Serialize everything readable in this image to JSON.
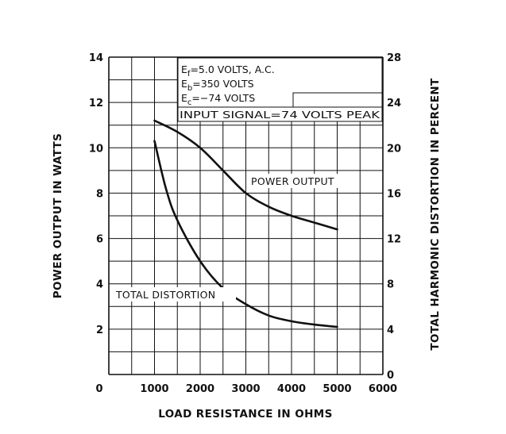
{
  "chart_data": {
    "type": "line",
    "xlabel": "LOAD RESISTANCE IN OHMS",
    "ylabel": "POWER OUTPUT IN WATTS",
    "y2label": "TOTAL HARMONIC DISTORTION IN PERCENT",
    "xlim": [
      0,
      6000
    ],
    "ylim": [
      0,
      14
    ],
    "y2lim": [
      0,
      28
    ],
    "x_ticks": [
      0,
      1000,
      2000,
      3000,
      4000,
      5000,
      6000
    ],
    "y_ticks": [
      0,
      2,
      4,
      6,
      8,
      10,
      12,
      14
    ],
    "y2_ticks": [
      0,
      4,
      8,
      12,
      16,
      20,
      24,
      28
    ],
    "grid": true,
    "conditions": [
      {
        "symbol": "E",
        "sub": "f",
        "text": "=5.0 VOLTS, A.C."
      },
      {
        "symbol": "E",
        "sub": "b",
        "text": "=350 VOLTS"
      },
      {
        "symbol": "E",
        "sub": "c",
        "text": "=−74 VOLTS"
      },
      {
        "symbol": "",
        "sub": "",
        "text": "INPUT SIGNAL=74 VOLTS PEAK"
      }
    ],
    "series": [
      {
        "name": "POWER OUTPUT",
        "axis": "left",
        "x": [
          1000,
          1500,
          2000,
          2500,
          3000,
          3500,
          4000,
          4500,
          5000
        ],
        "y": [
          11.2,
          10.7,
          10.0,
          9.0,
          8.0,
          7.4,
          7.0,
          6.7,
          6.4
        ]
      },
      {
        "name": "TOTAL DISTORTION",
        "axis": "right",
        "x": [
          1000,
          1250,
          1500,
          2000,
          2500,
          3000,
          3500,
          4000,
          4500,
          5000
        ],
        "y": [
          20.6,
          16.4,
          13.6,
          10.0,
          7.6,
          6.2,
          5.2,
          4.7,
          4.4,
          4.2
        ]
      }
    ]
  }
}
